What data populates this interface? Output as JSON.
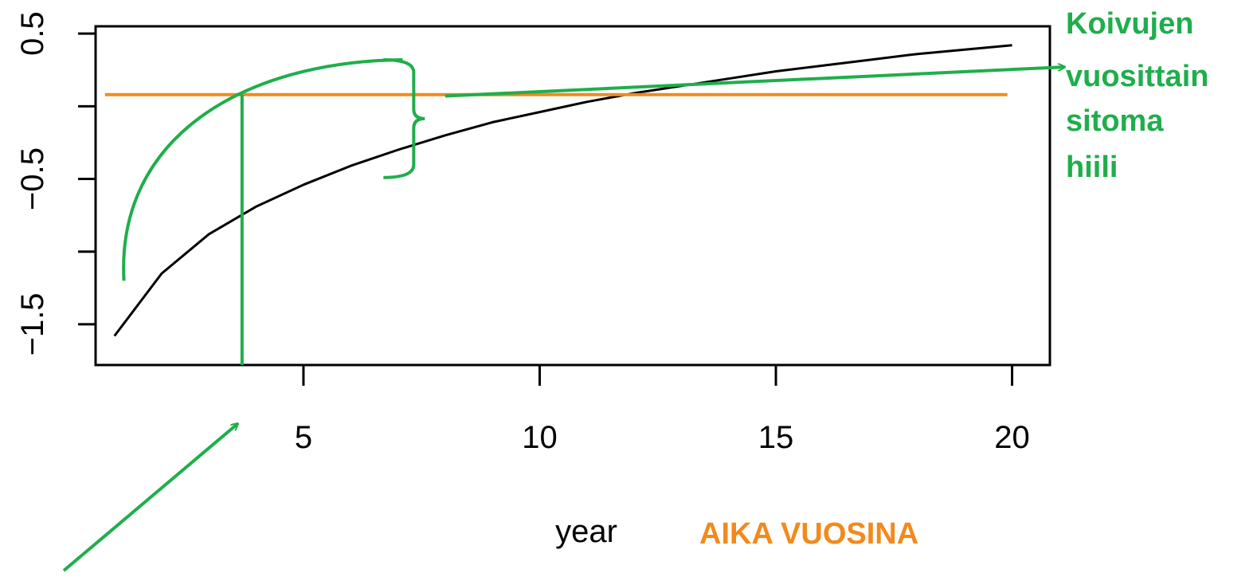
{
  "chart_data": {
    "type": "line",
    "title": "",
    "xlabel": "year",
    "ylabel": "",
    "xlim": [
      0.6,
      20.8
    ],
    "ylim": [
      -1.78,
      0.55
    ],
    "xticks": [
      5,
      10,
      15,
      20
    ],
    "yticks": [
      0.5,
      -0.5,
      -1.5
    ],
    "yticks_unlabeled": [
      0,
      -1
    ],
    "grid": false,
    "legend": "none",
    "series": [
      {
        "color": "#000000",
        "x": [
          1,
          2,
          3,
          4,
          5,
          6,
          7,
          8,
          9,
          10,
          11,
          12,
          13,
          14,
          15,
          16,
          17,
          18,
          19,
          20
        ],
        "y": [
          -1.58,
          -1.15,
          -0.88,
          -0.69,
          -0.54,
          -0.41,
          -0.3,
          -0.2,
          -0.11,
          -0.04,
          0.03,
          0.09,
          0.14,
          0.19,
          0.24,
          0.28,
          0.32,
          0.36,
          0.39,
          0.42
        ]
      }
    ],
    "annotations": {
      "zero_line": {
        "y": 0.08,
        "x_from": 0.8,
        "x_to": 19.9,
        "color": "#f28a1c"
      },
      "vertical_marker": {
        "x": 3.7,
        "y_from": 0.08,
        "color": "#1fae4b"
      },
      "curve_arc": {
        "x_from": 1.2,
        "y_from": -1.2,
        "x_to": 7.1,
        "y_to": 0.32,
        "color": "#1fae4b"
      },
      "bracket": {
        "x": 7.3,
        "y_top": 0.32,
        "y_bottom": -0.49,
        "color": "#1fae4b"
      },
      "arrow_to_label": {
        "x_from": 8.0,
        "y_from": 0.07,
        "x_to": 21.1,
        "y_to": 0.27,
        "color": "#1fae4b"
      },
      "arrow_to_axis": {
        "color": "#1fae4b"
      },
      "time_label": {
        "text": "AIKA VUOSINA",
        "color": "#f28a1c"
      },
      "side_label": {
        "lines": [
          "Koivujen",
          "vuosittain",
          "sitoma",
          "hiili"
        ],
        "color": "#1fae4b"
      }
    }
  }
}
